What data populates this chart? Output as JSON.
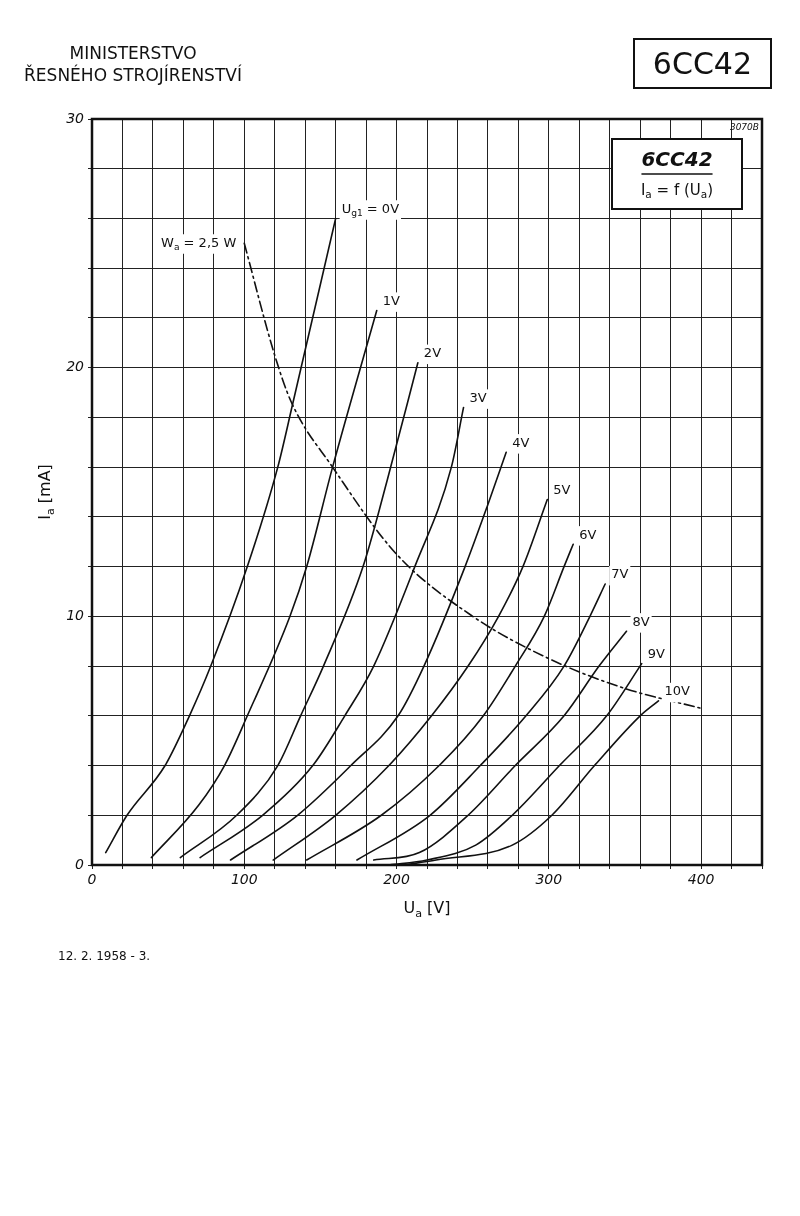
{
  "chart_data": {
    "type": "line",
    "title": "6CC42",
    "xlabel": "U$_{a}$ [V]",
    "ylabel": "I$_{a}$ [mA]",
    "annotations": [
      "I$_{a}$ = f (U$_{a}$)",
      "3070B",
      "MINISTERSTVO",
      "ŘESNÉHO STROJÍRENSTVÍ",
      "12. 2. 1958 - 3."
    ],
    "xlim": [
      0,
      440
    ],
    "ylim": [
      0,
      30
    ],
    "xticks": [
      0,
      {
        "value": 20,
        "label": null
      },
      {
        "value": 40,
        "label": null
      },
      {
        "value": 60,
        "label": null
      },
      {
        "value": 80,
        "label": null
      },
      100,
      {
        "value": 120,
        "label": null
      },
      {
        "value": 140,
        "label": null
      },
      {
        "value": 160,
        "label": null
      },
      {
        "value": 180,
        "label": null
      },
      200,
      {
        "value": 220,
        "label": null
      },
      {
        "value": 240,
        "label": null
      },
      {
        "value": 260,
        "label": null
      },
      {
        "value": 280,
        "label": null
      },
      300,
      {
        "value": 320,
        "label": null
      },
      {
        "value": 340,
        "label": null
      },
      {
        "value": 360,
        "label": null
      },
      {
        "value": 380,
        "label": null
      },
      400,
      {
        "value": 420,
        "label": null
      },
      {
        "value": 440,
        "label": null
      }
    ],
    "yticks": [
      0,
      {
        "value": 2,
        "label": null
      },
      {
        "value": 4,
        "label": null
      },
      {
        "value": 6,
        "label": null
      },
      {
        "value": 8,
        "label": null
      },
      10,
      {
        "value": 12,
        "label": null
      },
      {
        "value": 14,
        "label": null
      },
      {
        "value": 16,
        "label": null
      },
      {
        "value": 18,
        "label": null
      },
      20,
      {
        "value": 22,
        "label": null
      },
      {
        "value": 24,
        "label": null
      },
      {
        "value": 26,
        "label": null
      },
      {
        "value": 28,
        "label": null
      },
      30
    ],
    "grid": true,
    "legend": false,
    "marker": "none",
    "line_style": "solid",
    "series": [
      {
        "name": "U$_{g1}$ = 0V",
        "color": "#111111",
        "x": [
          9,
          23,
          48,
          64,
          78,
          102,
          122,
          132,
          160
        ],
        "values": [
          0.5,
          2,
          4,
          6,
          8,
          12,
          16,
          18.6,
          26
        ]
      },
      {
        "name": "1V",
        "color": "#111111",
        "x": [
          39,
          70,
          87,
          102,
          130,
          141,
          158,
          187
        ],
        "values": [
          0.3,
          2.4,
          4,
          6,
          10,
          12,
          16,
          22.3
        ]
      },
      {
        "name": "2V",
        "color": "#111111",
        "x": [
          58,
          95,
          122,
          137,
          152,
          178,
          194,
          214
        ],
        "values": [
          0.3,
          2,
          4,
          6,
          8,
          12,
          15.5,
          20.2
        ]
      },
      {
        "name": "3V",
        "color": "#111111",
        "x": [
          71,
          112,
          145,
          166,
          185,
          212,
          236,
          244
        ],
        "values": [
          0.3,
          2,
          4,
          6,
          8,
          12,
          16,
          18.4
        ]
      },
      {
        "name": "4V",
        "color": "#111111",
        "x": [
          91,
          135,
          170,
          201,
          218,
          245,
          260,
          272
        ],
        "values": [
          0.2,
          2,
          4,
          6,
          8,
          12,
          14.5,
          16.6
        ]
      },
      {
        "name": "5V",
        "color": "#111111",
        "x": [
          119,
          160,
          195,
          223,
          247,
          267,
          283,
          299
        ],
        "values": [
          0.2,
          2,
          4,
          6,
          8,
          10,
          12,
          14.7
        ]
      },
      {
        "name": "6V",
        "color": "#111111",
        "x": [
          141,
          190,
          228,
          257,
          278,
          297,
          310,
          316
        ],
        "values": [
          0.2,
          2,
          4,
          6,
          8,
          10,
          12,
          12.9
        ]
      },
      {
        "name": "7V",
        "color": "#111111",
        "x": [
          174,
          222,
          255,
          285,
          310,
          327,
          337
        ],
        "values": [
          0.2,
          2,
          4,
          6,
          8,
          10,
          11.3
        ]
      },
      {
        "name": "8V",
        "color": "#111111",
        "x": [
          185,
          215,
          247,
          278,
          310,
          333,
          351
        ],
        "values": [
          0.2,
          0.5,
          2,
          4,
          6,
          8,
          9.4
        ]
      },
      {
        "name": "9V",
        "color": "#111111",
        "x": [
          195,
          220,
          252,
          276,
          307,
          338,
          361
        ],
        "values": [
          0,
          0.2,
          0.8,
          2,
          4,
          6,
          8.1
        ]
      },
      {
        "name": "10V",
        "color": "#111111",
        "x": [
          205,
          226,
          276,
          302,
          330,
          360,
          372
        ],
        "values": [
          0,
          0.2,
          0.8,
          2,
          4,
          6,
          6.6
        ]
      },
      {
        "name": "W$_{a}$ = 2,5 W",
        "color": "#111111",
        "line_style": "dashed",
        "x": [
          100,
          120,
          131,
          158,
          200,
          250,
          300,
          350,
          400
        ],
        "values": [
          25,
          20.5,
          18.6,
          16,
          12.5,
          10,
          8.3,
          7.1,
          6.3
        ]
      }
    ]
  }
}
